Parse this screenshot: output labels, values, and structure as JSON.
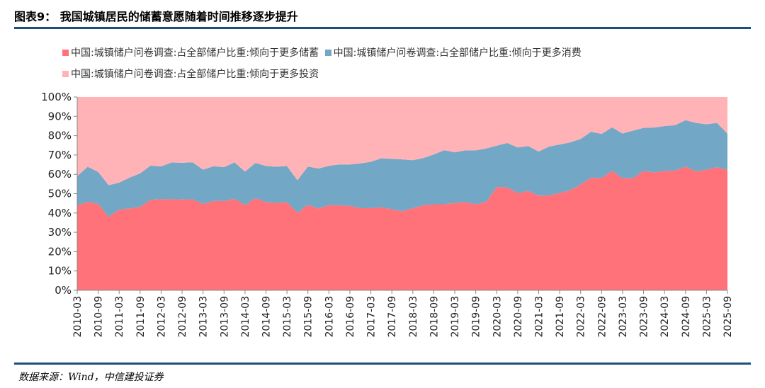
{
  "header": {
    "title": "图表9：  我国城镇居民的储蓄意愿随着时间推移逐步提升"
  },
  "footer": {
    "source": "数据来源：Wind，中信建投证券"
  },
  "chart_data": {
    "type": "area",
    "stacked": true,
    "colors": {
      "savings": "#ff7279",
      "consumption": "#72a7c6",
      "investment": "#ffb3b6",
      "axis": "#888888"
    },
    "ylim": [
      0,
      100
    ],
    "yticks": [
      "0%",
      "10%",
      "20%",
      "30%",
      "40%",
      "50%",
      "60%",
      "70%",
      "80%",
      "90%",
      "100%"
    ],
    "xtick_labels": [
      "2010-03",
      "2010-09",
      "2011-03",
      "2011-09",
      "2012-03",
      "2012-09",
      "2013-03",
      "2013-09",
      "2014-03",
      "2014-09",
      "2015-03",
      "2015-09",
      "2016-03",
      "2016-09",
      "2017-03",
      "2017-09",
      "2018-03",
      "2018-09",
      "2019-03",
      "2019-09",
      "2020-03",
      "2020-09",
      "2021-03",
      "2021-09",
      "2022-03",
      "2022-09",
      "2023-03",
      "2023-09",
      "2024-03",
      "2024-09",
      "2025-03",
      "2025-09"
    ],
    "x": [
      "2010-03",
      "2010-06",
      "2010-09",
      "2010-12",
      "2011-03",
      "2011-06",
      "2011-09",
      "2011-12",
      "2012-03",
      "2012-06",
      "2012-09",
      "2012-12",
      "2013-03",
      "2013-06",
      "2013-09",
      "2013-12",
      "2014-03",
      "2014-06",
      "2014-09",
      "2014-12",
      "2015-03",
      "2015-06",
      "2015-09",
      "2015-12",
      "2016-03",
      "2016-06",
      "2016-09",
      "2016-12",
      "2017-03",
      "2017-06",
      "2017-09",
      "2017-12",
      "2018-03",
      "2018-06",
      "2018-09",
      "2018-12",
      "2019-03",
      "2019-06",
      "2019-09",
      "2019-12",
      "2020-03",
      "2020-06",
      "2020-09",
      "2020-12",
      "2021-03",
      "2021-06",
      "2021-09",
      "2021-12",
      "2022-03",
      "2022-06",
      "2022-09",
      "2022-12",
      "2023-03",
      "2023-06",
      "2023-09",
      "2023-12",
      "2024-03",
      "2024-06",
      "2024-09",
      "2024-12",
      "2025-03",
      "2025-06",
      "2025-09"
    ],
    "series": [
      {
        "key": "savings",
        "name": "中国:城镇储户问卷调查:占全部储户比重:倾向于更多储蓄",
        "values": [
          44.0,
          45.7,
          44.8,
          38.0,
          41.8,
          42.3,
          43.2,
          46.8,
          47.1,
          47.1,
          47.0,
          47.1,
          44.7,
          46.2,
          46.2,
          47.3,
          44.1,
          47.6,
          45.7,
          45.2,
          45.6,
          40.1,
          44.2,
          42.3,
          44.0,
          44.0,
          43.7,
          42.5,
          42.5,
          42.9,
          41.9,
          40.9,
          42.5,
          44.0,
          44.5,
          44.5,
          45.2,
          45.6,
          44.5,
          45.7,
          53.5,
          53.2,
          50.3,
          51.4,
          49.0,
          49.1,
          50.3,
          51.8,
          54.7,
          58.3,
          58.1,
          61.8,
          58.0,
          58.0,
          61.8,
          61.0,
          61.8,
          61.9,
          64.0,
          61.5,
          62.4,
          63.7,
          62.3
        ]
      },
      {
        "key": "consumption",
        "name": "中国:城镇储户问卷调查:占全部储户比重:倾向于更多消费",
        "values": [
          15.0,
          18.2,
          16.4,
          16.4,
          13.9,
          16.0,
          17.3,
          17.7,
          17.0,
          19.0,
          19.0,
          19.1,
          17.7,
          18.0,
          17.5,
          18.9,
          17.3,
          18.3,
          18.6,
          18.7,
          18.7,
          16.8,
          19.8,
          20.7,
          20.4,
          21.1,
          21.4,
          23.1,
          24.0,
          25.4,
          26.1,
          26.8,
          24.8,
          24.4,
          25.8,
          28.0,
          26.2,
          26.8,
          27.9,
          27.7,
          21.3,
          23.0,
          23.6,
          23.2,
          22.8,
          25.3,
          25.1,
          24.7,
          23.6,
          23.7,
          22.8,
          22.5,
          23.1,
          24.6,
          22.2,
          23.2,
          23.2,
          23.5,
          24.0,
          25.1,
          23.5,
          22.9,
          18.7
        ]
      },
      {
        "key": "investment",
        "name": "中国:城镇储户问卷调查:占全部储户比重:倾向于更多投资",
        "values": [
          41.0,
          36.1,
          38.8,
          45.6,
          44.3,
          41.7,
          39.5,
          35.5,
          35.9,
          33.9,
          34.0,
          33.8,
          37.6,
          35.8,
          36.3,
          33.8,
          38.6,
          34.1,
          35.7,
          36.1,
          35.7,
          43.1,
          36.0,
          37.0,
          35.6,
          34.9,
          34.9,
          34.4,
          33.5,
          31.7,
          32.0,
          32.3,
          32.7,
          31.6,
          29.7,
          27.5,
          28.6,
          27.6,
          27.6,
          26.6,
          25.2,
          23.8,
          26.1,
          25.4,
          28.2,
          25.6,
          24.6,
          23.5,
          21.7,
          18.0,
          19.1,
          15.7,
          18.9,
          17.4,
          16.0,
          15.8,
          15.0,
          14.6,
          12.0,
          13.4,
          14.1,
          13.4,
          19.0
        ]
      }
    ]
  }
}
